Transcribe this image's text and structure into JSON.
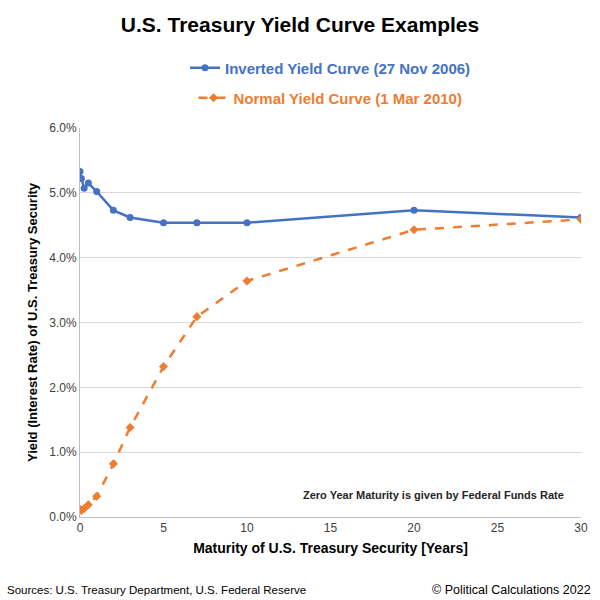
{
  "chart_data": {
    "type": "line",
    "title": "U.S. Treasury Yield Curve Examples",
    "x_label": "Maturity of U.S. Treasury Security [Years]",
    "y_label": "Yield (Interest Rate) of U.S. Treasury Security",
    "x": [
      0,
      0.083,
      0.25,
      0.5,
      1,
      2,
      3,
      5,
      7,
      10,
      20,
      30
    ],
    "series": [
      {
        "name": "Inverted Yield Curve (27 Nov 2006)",
        "color": "#4472c4",
        "marker": "circle",
        "line_style": "solid",
        "values": [
          5.33,
          5.22,
          5.07,
          5.15,
          5.02,
          4.73,
          4.62,
          4.54,
          4.54,
          4.54,
          4.73,
          4.62
        ]
      },
      {
        "name": "Normal Yield Curve (1 Mar 2010)",
        "color": "#ed7d31",
        "marker": "diamond",
        "line_style": "dash",
        "values": [
          0.12,
          0.1,
          0.13,
          0.19,
          0.32,
          0.82,
          1.38,
          2.32,
          3.09,
          3.64,
          4.43,
          4.59
        ]
      }
    ],
    "xlim": [
      0,
      30
    ],
    "xticks": [
      0,
      5,
      10,
      15,
      20,
      25,
      30
    ],
    "ylim": [
      0,
      6
    ],
    "yticks": [
      {
        "value": 0,
        "label": "0.0%"
      },
      {
        "value": 1,
        "label": "1.0%"
      },
      {
        "value": 2,
        "label": "2.0%"
      },
      {
        "value": 3,
        "label": "3.0%"
      },
      {
        "value": 4,
        "label": "4.0%"
      },
      {
        "value": 5,
        "label": "5.0%"
      },
      {
        "value": 6,
        "label": "6.0%"
      }
    ],
    "grid": "y",
    "legend": "top",
    "note": "Zero Year Maturity is given by Federal Funds Rate",
    "source": "Sources: U.S. Treasury Department, U.S. Federal Reserve",
    "copyright": "© Political Calculations 2022"
  }
}
